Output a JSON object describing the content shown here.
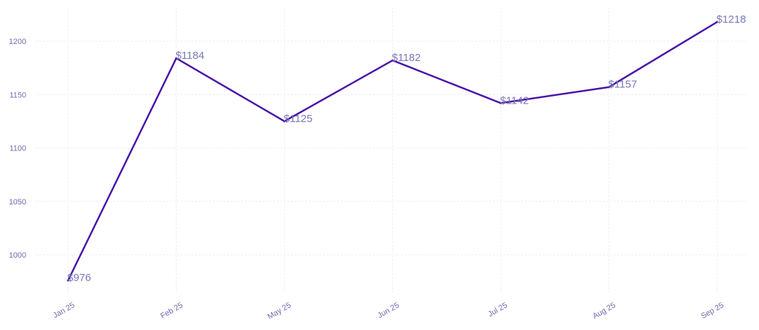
{
  "chart_data": {
    "type": "line",
    "title": "",
    "xlabel": "",
    "ylabel": "",
    "categories": [
      "Jan 25",
      "Feb 25",
      "May 25",
      "Jun 25",
      "Jul 25",
      "Aug 25",
      "Sep 25"
    ],
    "values": [
      976,
      1184,
      1125,
      1182,
      1142,
      1157,
      1218
    ],
    "data_labels": [
      "$976",
      "$1184",
      "$1125",
      "$1182",
      "$1142",
      "$1157",
      "$1218"
    ],
    "yticks": [
      1000,
      1050,
      1100,
      1150,
      1200
    ],
    "ylim": [
      965,
      1230
    ],
    "grid": true,
    "line_color": "#4a14a8",
    "label_color": "#7a78b8"
  }
}
